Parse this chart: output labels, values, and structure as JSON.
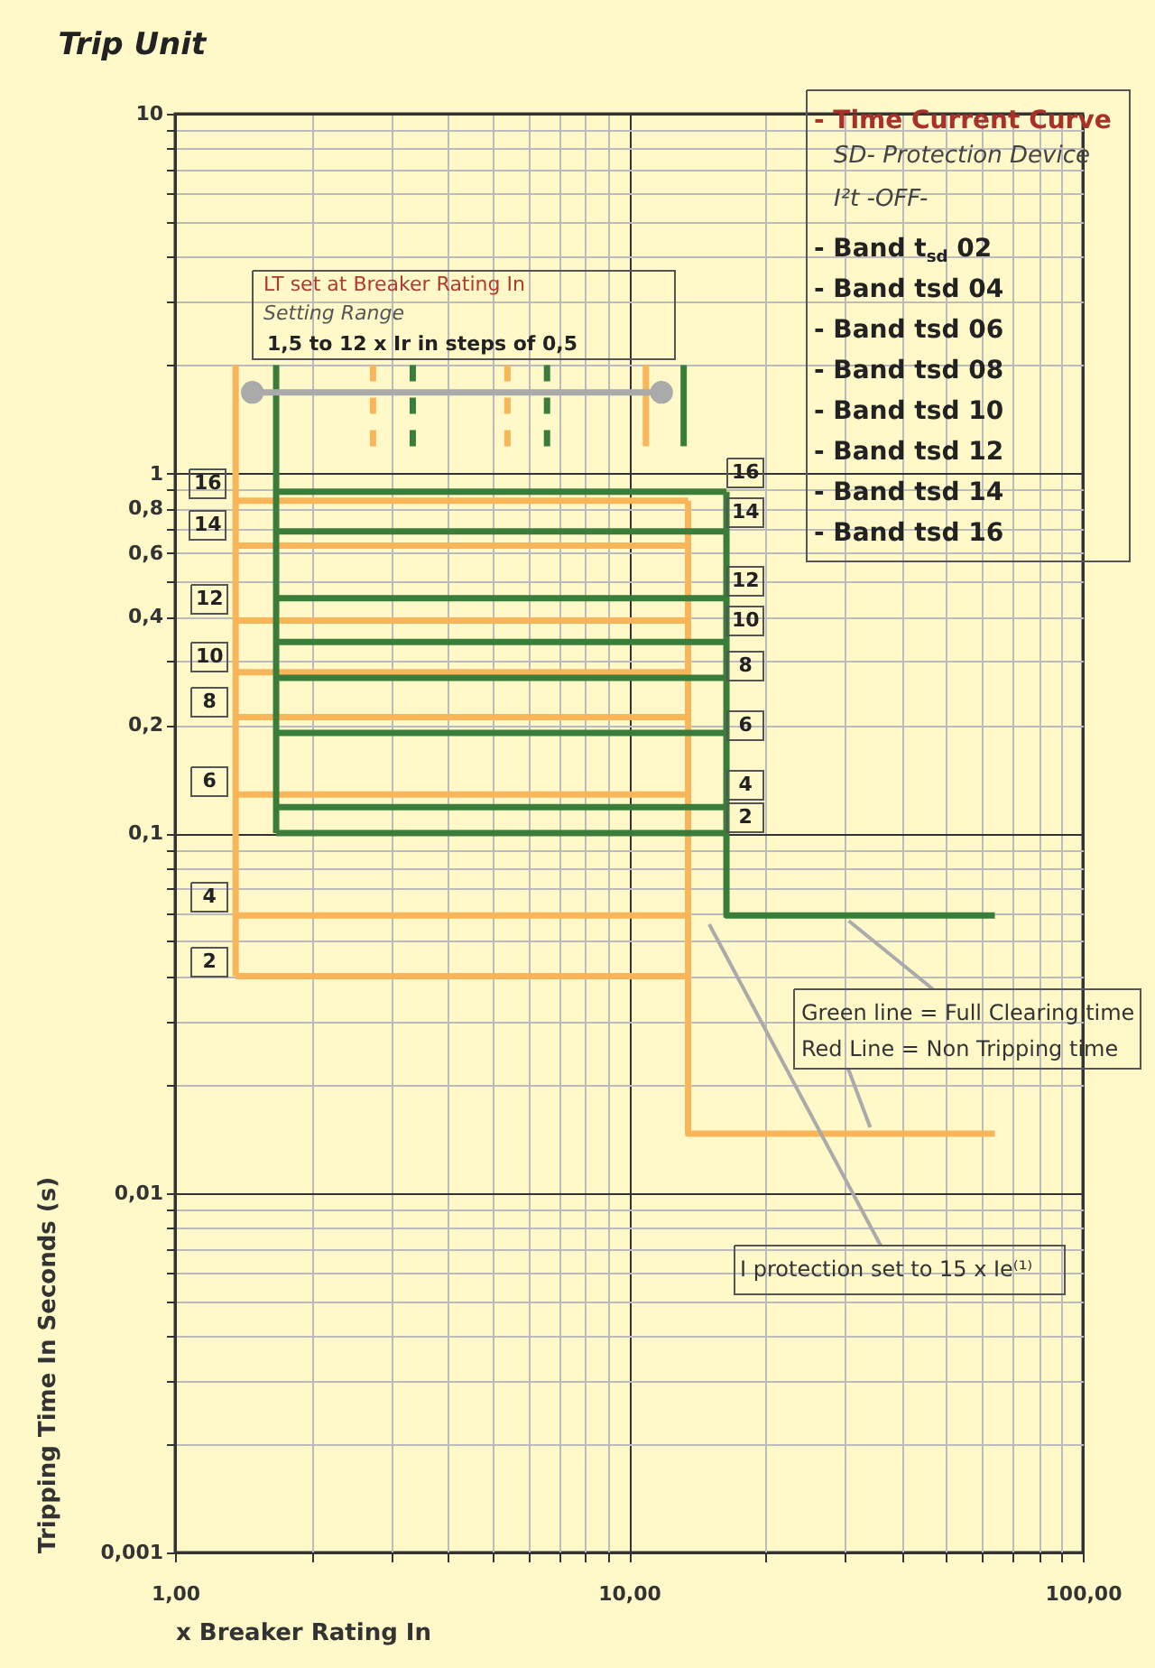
{
  "chart_data": {
    "type": "line",
    "title": "Trip Unit",
    "xlabel": "x Breaker Rating In",
    "ylabel": "Tripping Time In Seconds (s)",
    "log": "xy",
    "grid": true,
    "xlim": [
      1,
      100
    ],
    "ylim": [
      0.001,
      10
    ],
    "xticks": [
      {
        "value": 1,
        "label": "1,00"
      },
      {
        "value": 2,
        "label": null
      },
      {
        "value": 3,
        "label": null
      },
      {
        "value": 4,
        "label": null
      },
      {
        "value": 5,
        "label": null
      },
      {
        "value": 6,
        "label": null
      },
      {
        "value": 7,
        "label": null
      },
      {
        "value": 8,
        "label": null
      },
      {
        "value": 9,
        "label": null
      },
      {
        "value": 10,
        "label": "10,00"
      },
      {
        "value": 20,
        "label": null
      },
      {
        "value": 30,
        "label": null
      },
      {
        "value": 40,
        "label": null
      },
      {
        "value": 50,
        "label": null
      },
      {
        "value": 60,
        "label": null
      },
      {
        "value": 70,
        "label": null
      },
      {
        "value": 80,
        "label": null
      },
      {
        "value": 90,
        "label": null
      },
      {
        "value": 100,
        "label": "100,00"
      }
    ],
    "yticks": [
      {
        "value": 0.001,
        "label": "0,001"
      },
      {
        "value": 0.002,
        "label": null
      },
      {
        "value": 0.003,
        "label": null
      },
      {
        "value": 0.004,
        "label": null
      },
      {
        "value": 0.005,
        "label": null
      },
      {
        "value": 0.006,
        "label": null
      },
      {
        "value": 0.007,
        "label": null
      },
      {
        "value": 0.008,
        "label": null
      },
      {
        "value": 0.009,
        "label": null
      },
      {
        "value": 0.01,
        "label": "0,01"
      },
      {
        "value": 0.02,
        "label": null
      },
      {
        "value": 0.03,
        "label": null
      },
      {
        "value": 0.04,
        "label": null
      },
      {
        "value": 0.05,
        "label": null
      },
      {
        "value": 0.06,
        "label": null
      },
      {
        "value": 0.07,
        "label": null
      },
      {
        "value": 0.08,
        "label": null
      },
      {
        "value": 0.09,
        "label": null
      },
      {
        "value": 0.1,
        "label": "0,1"
      },
      {
        "value": 0.2,
        "label": "0,2"
      },
      {
        "value": 0.3,
        "label": null
      },
      {
        "value": 0.4,
        "label": "0,4"
      },
      {
        "value": 0.5,
        "label": null
      },
      {
        "value": 0.6,
        "label": "0,6"
      },
      {
        "value": 0.7,
        "label": null
      },
      {
        "value": 0.8,
        "label": "0,8"
      },
      {
        "value": 0.9,
        "label": null
      },
      1,
      {
        "value": 2,
        "label": null
      },
      {
        "value": 3,
        "label": null
      },
      {
        "value": 4,
        "label": null
      },
      {
        "value": 5,
        "label": null
      },
      {
        "value": 6,
        "label": null
      },
      {
        "value": 7,
        "label": null
      },
      {
        "value": 8,
        "label": null
      },
      {
        "value": 9,
        "label": null
      },
      10
    ],
    "series": [
      {
        "color": "#f9b55a",
        "x": [
          1.36,
          1.36
        ],
        "values": [
          2.0,
          0.04
        ]
      },
      {
        "color": "#f9b55a",
        "x": [
          1.36,
          13.5
        ],
        "values": [
          0.84,
          0.84
        ]
      },
      {
        "color": "#f9b55a",
        "x": [
          1.36,
          13.5
        ],
        "values": [
          0.63,
          0.63
        ]
      },
      {
        "color": "#f9b55a",
        "x": [
          1.36,
          13.5
        ],
        "values": [
          0.39,
          0.39
        ]
      },
      {
        "color": "#f9b55a",
        "x": [
          1.36,
          13.5
        ],
        "values": [
          0.28,
          0.28
        ]
      },
      {
        "color": "#f9b55a",
        "x": [
          1.36,
          13.5
        ],
        "values": [
          0.21,
          0.21
        ]
      },
      {
        "color": "#f9b55a",
        "x": [
          1.36,
          13.5
        ],
        "values": [
          0.128,
          0.128
        ]
      },
      {
        "color": "#f9b55a",
        "x": [
          1.36,
          13.5
        ],
        "values": [
          0.059,
          0.059
        ]
      },
      {
        "color": "#f9b55a",
        "x": [
          1.36,
          13.5
        ],
        "values": [
          0.04,
          0.04
        ]
      },
      {
        "color": "#f9b55a",
        "x": [
          13.5,
          13.5,
          64
        ],
        "values": [
          0.84,
          0.0146,
          0.0146
        ]
      },
      {
        "color": "#3a7d3a",
        "x": [
          1.67,
          1.67
        ],
        "values": [
          2.0,
          0.1
        ]
      },
      {
        "color": "#3a7d3a",
        "x": [
          1.67,
          16.4
        ],
        "values": [
          0.89,
          0.89
        ]
      },
      {
        "color": "#3a7d3a",
        "x": [
          1.67,
          16.4
        ],
        "values": [
          0.69,
          0.69
        ]
      },
      {
        "color": "#3a7d3a",
        "x": [
          1.67,
          16.4
        ],
        "values": [
          0.45,
          0.45
        ]
      },
      {
        "color": "#3a7d3a",
        "x": [
          1.67,
          16.4
        ],
        "values": [
          0.34,
          0.34
        ]
      },
      {
        "color": "#3a7d3a",
        "x": [
          1.67,
          16.4
        ],
        "values": [
          0.27,
          0.27
        ]
      },
      {
        "color": "#3a7d3a",
        "x": [
          1.67,
          16.4
        ],
        "values": [
          0.19,
          0.19
        ]
      },
      {
        "color": "#3a7d3a",
        "x": [
          1.67,
          16.4
        ],
        "values": [
          0.118,
          0.118
        ]
      },
      {
        "color": "#3a7d3a",
        "x": [
          1.67,
          16.4
        ],
        "values": [
          0.1,
          0.1
        ]
      },
      {
        "color": "#3a7d3a",
        "x": [
          16.4,
          16.4,
          64
        ],
        "values": [
          0.89,
          0.059,
          0.059
        ]
      },
      {
        "color": "#f9b55a",
        "x": [
          10.9,
          10.9
        ],
        "values": [
          2.0,
          1.19
        ]
      },
      {
        "color": "#3a7d3a",
        "x": [
          13.2,
          13.2
        ],
        "values": [
          2.0,
          1.19
        ]
      },
      {
        "color": "#f9b55a",
        "x": [
          2.73,
          2.73
        ],
        "values": [
          2.0,
          1.19
        ],
        "line_style": "dashed"
      },
      {
        "color": "#f9b55a",
        "x": [
          5.4,
          5.4
        ],
        "values": [
          2.0,
          1.19
        ],
        "line_style": "dashed"
      },
      {
        "color": "#3a7d3a",
        "x": [
          3.34,
          3.34
        ],
        "values": [
          2.0,
          1.19
        ],
        "line_style": "dashed"
      },
      {
        "color": "#3a7d3a",
        "x": [
          6.6,
          6.6
        ],
        "values": [
          2.0,
          1.19
        ],
        "line_style": "dashed"
      },
      {
        "color": "#aaaaaa",
        "x": [
          1.48,
          11.8
        ],
        "values": [
          1.68,
          1.68
        ],
        "marker": "circle"
      }
    ],
    "annotations": [
      "LT set at Breaker Rating In",
      "Setting Range",
      "1,5 to 12 x Ir in steps of 0,5",
      "- Time Current Curve",
      "SD- Protection Device",
      "I²t -OFF-",
      "- Band t$_{sd}$ 02",
      "- Band tsd 04",
      "- Band tsd 06",
      "- Band tsd 08",
      "- Band tsd 10",
      "- Band tsd 12",
      "- Band tsd 14",
      "- Band tsd 16",
      {
        "text": "Green line = Full Clearing time",
        "x": 30.5,
        "y": 0.057
      },
      {
        "text": "Red Line  = Non Tripping time",
        "x": 34,
        "y": 0.0152
      },
      "I   protection set to 15 x Ie⁽¹⁾",
      "16",
      "14",
      "12",
      "10",
      "8",
      "6",
      "4",
      "2",
      "16",
      "14",
      "12",
      "10",
      "8",
      "6",
      "4",
      "2"
    ]
  }
}
